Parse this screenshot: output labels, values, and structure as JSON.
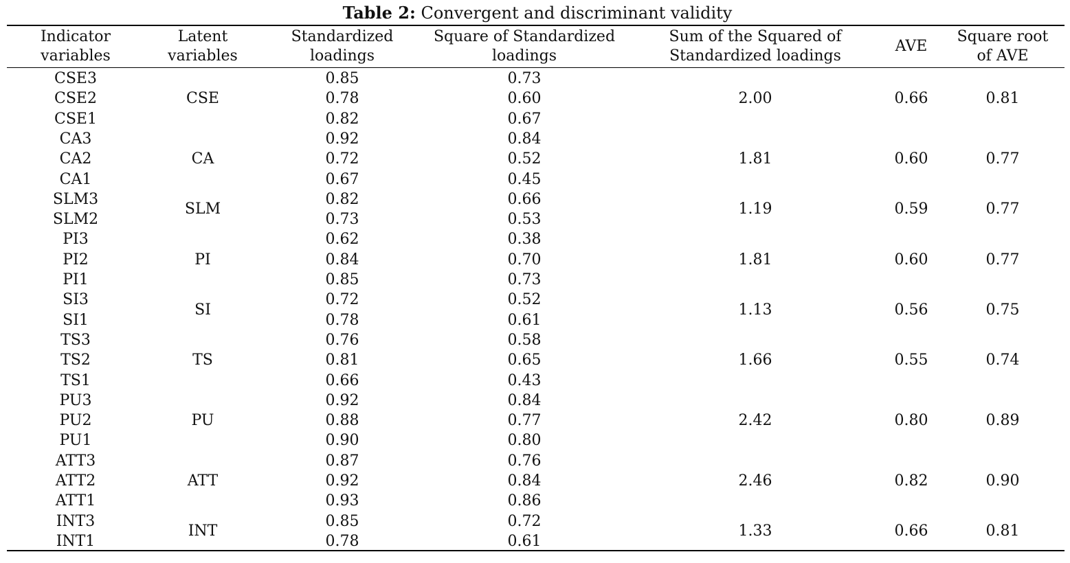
{
  "title": {
    "bold": "Table 2:",
    "rest": " Convergent and discriminant validity"
  },
  "headers": [
    "Indicator\nvariables",
    "Latent\nvariables",
    "Standardized\nloadings",
    "Square of Standardized\nloadings",
    "Sum of the Squared of\nStandardized loadings",
    "AVE",
    "Square root\nof AVE"
  ],
  "rows": [
    {
      "ind": "CSE3",
      "sl": "0.85",
      "sq": "0.73"
    },
    {
      "ind": "CSE2",
      "sl": "0.78",
      "sq": "0.60"
    },
    {
      "ind": "CSE1",
      "sl": "0.82",
      "sq": "0.67"
    },
    {
      "ind": "CA3",
      "sl": "0.92",
      "sq": "0.84"
    },
    {
      "ind": "CA2",
      "sl": "0.72",
      "sq": "0.52"
    },
    {
      "ind": "CA1",
      "sl": "0.67",
      "sq": "0.45"
    },
    {
      "ind": "SLM3",
      "sl": "0.82",
      "sq": "0.66"
    },
    {
      "ind": "SLM2",
      "sl": "0.73",
      "sq": "0.53"
    },
    {
      "ind": "PI3",
      "sl": "0.62",
      "sq": "0.38"
    },
    {
      "ind": "PI2",
      "sl": "0.84",
      "sq": "0.70"
    },
    {
      "ind": "PI1",
      "sl": "0.85",
      "sq": "0.73"
    },
    {
      "ind": "SI3",
      "sl": "0.72",
      "sq": "0.52"
    },
    {
      "ind": "SI1",
      "sl": "0.78",
      "sq": "0.61"
    },
    {
      "ind": "TS3",
      "sl": "0.76",
      "sq": "0.58"
    },
    {
      "ind": "TS2",
      "sl": "0.81",
      "sq": "0.65"
    },
    {
      "ind": "TS1",
      "sl": "0.66",
      "sq": "0.43"
    },
    {
      "ind": "PU3",
      "sl": "0.92",
      "sq": "0.84"
    },
    {
      "ind": "PU2",
      "sl": "0.88",
      "sq": "0.77"
    },
    {
      "ind": "PU1",
      "sl": "0.90",
      "sq": "0.80"
    },
    {
      "ind": "ATT3",
      "sl": "0.87",
      "sq": "0.76"
    },
    {
      "ind": "ATT2",
      "sl": "0.92",
      "sq": "0.84"
    },
    {
      "ind": "ATT1",
      "sl": "0.93",
      "sq": "0.86"
    },
    {
      "ind": "INT3",
      "sl": "0.85",
      "sq": "0.72"
    },
    {
      "ind": "INT1",
      "sl": "0.78",
      "sq": "0.61"
    }
  ],
  "groups": [
    {
      "latent": "CSE",
      "sum": "2.00",
      "ave": "0.66",
      "sqrt": "0.81",
      "rows": 3
    },
    {
      "latent": "CA",
      "sum": "1.81",
      "ave": "0.60",
      "sqrt": "0.77",
      "rows": 3
    },
    {
      "latent": "SLM",
      "sum": "1.19",
      "ave": "0.59",
      "sqrt": "0.77",
      "rows": 2
    },
    {
      "latent": "PI",
      "sum": "1.81",
      "ave": "0.60",
      "sqrt": "0.77",
      "rows": 3
    },
    {
      "latent": "SI",
      "sum": "1.13",
      "ave": "0.56",
      "sqrt": "0.75",
      "rows": 2
    },
    {
      "latent": "TS",
      "sum": "1.66",
      "ave": "0.55",
      "sqrt": "0.74",
      "rows": 3
    },
    {
      "latent": "PU",
      "sum": "2.42",
      "ave": "0.80",
      "sqrt": "0.89",
      "rows": 3
    },
    {
      "latent": "ATT",
      "sum": "2.46",
      "ave": "0.82",
      "sqrt": "0.90",
      "rows": 3
    },
    {
      "latent": "INT",
      "sum": "1.33",
      "ave": "0.66",
      "sqrt": "0.81",
      "rows": 2
    }
  ]
}
